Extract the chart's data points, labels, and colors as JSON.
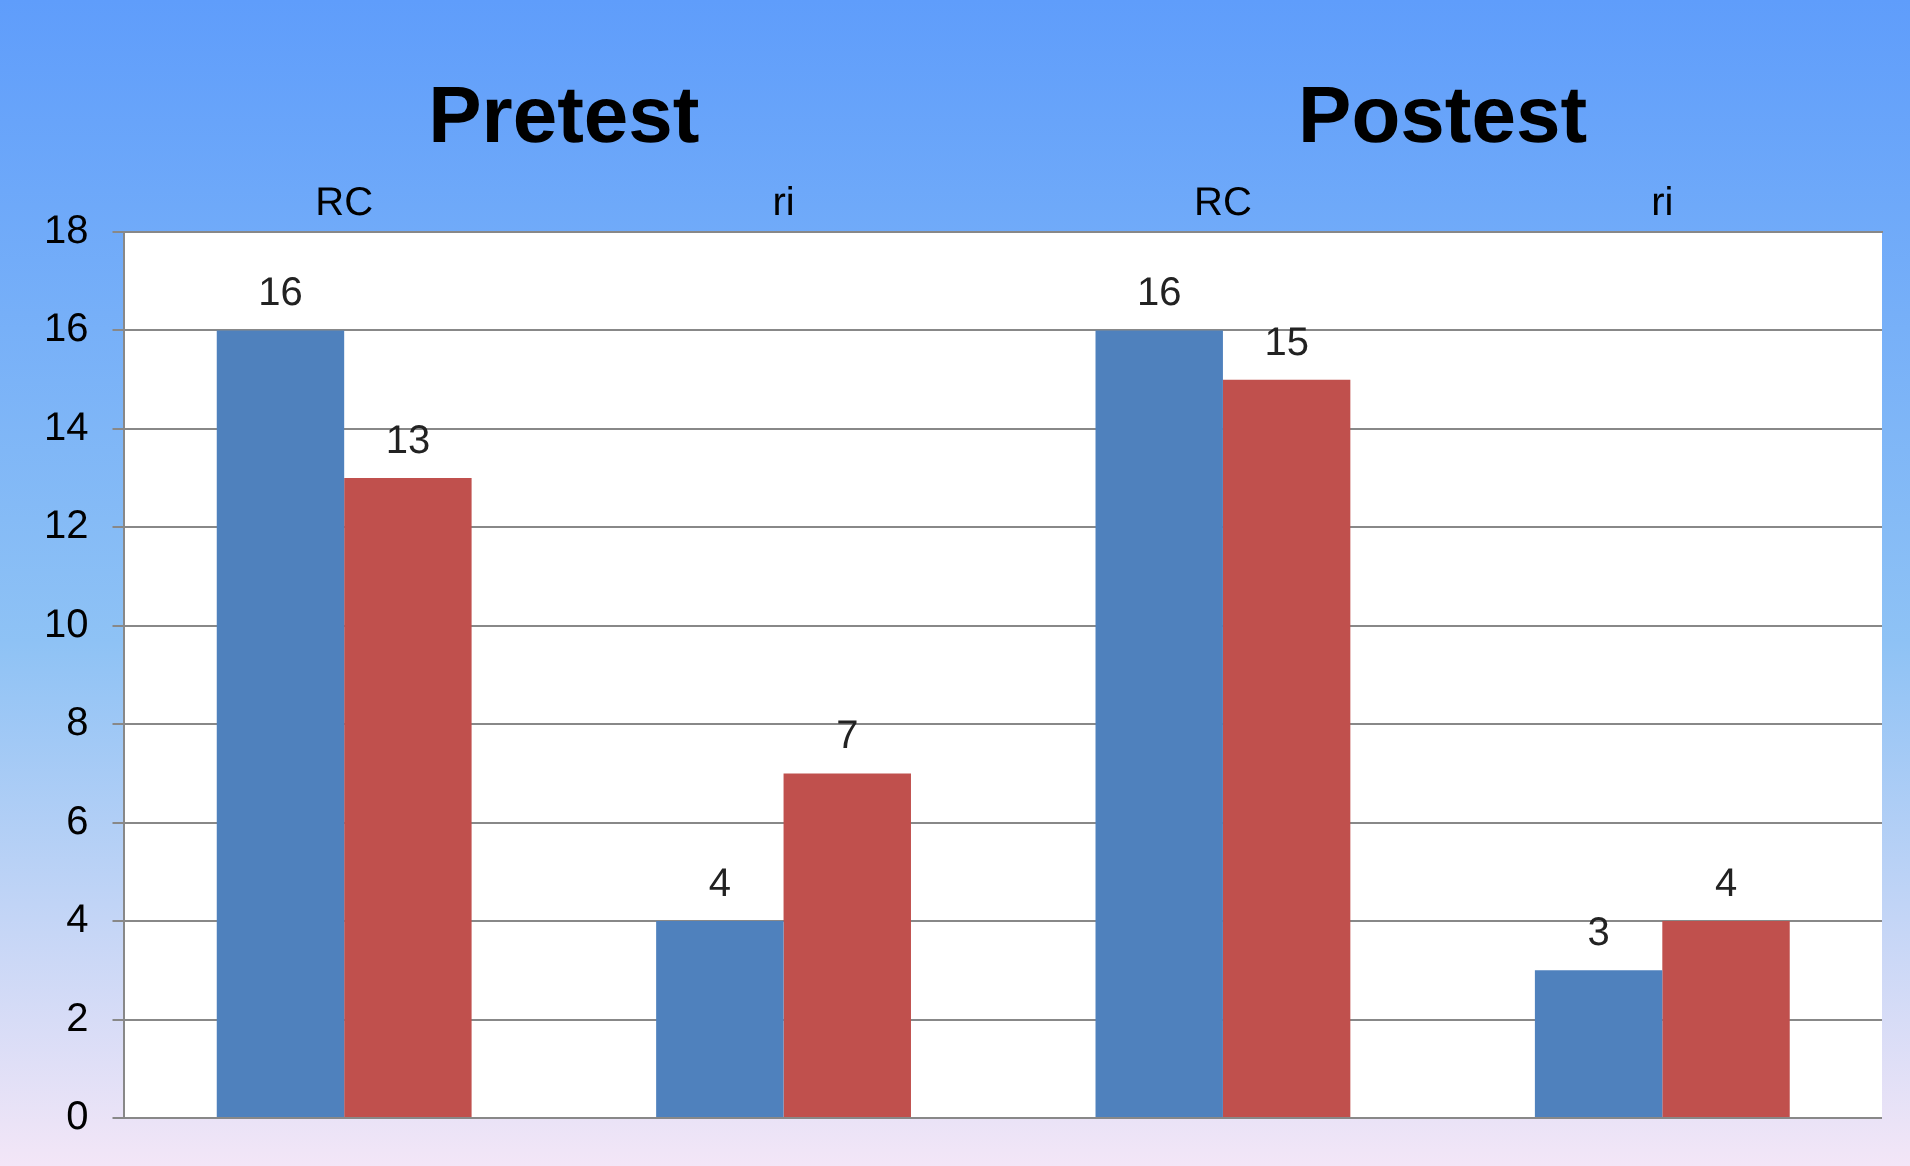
{
  "chart_data": {
    "type": "bar",
    "categories": [
      "RC",
      "ri",
      "RC",
      "ri"
    ],
    "series": [
      {
        "color": "#4f81bd",
        "values": [
          16,
          4,
          16,
          3
        ]
      },
      {
        "color": "#c0504d",
        "values": [
          13,
          7,
          15,
          4
        ]
      }
    ],
    "ylim": [
      0,
      18
    ],
    "yticks": [
      0,
      2,
      4,
      6,
      8,
      10,
      12,
      14,
      16,
      18
    ],
    "grid": "y",
    "legend": false,
    "data_labels": true,
    "annotations": [
      "Pretest",
      "Postest"
    ]
  }
}
